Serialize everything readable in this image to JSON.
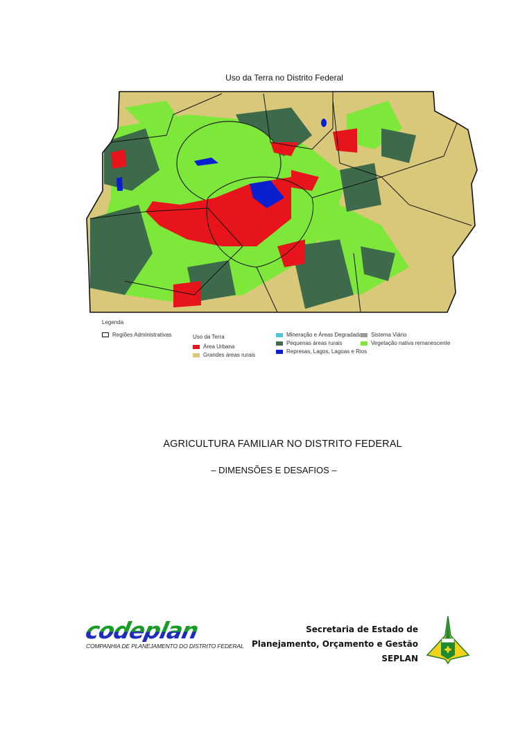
{
  "map": {
    "title": "Uso da Terra no Distrito Federal",
    "legend": {
      "heading": "Legenda",
      "boundary_label": "Regiões Administrativas",
      "group_label": "Uso da Terra",
      "items": [
        {
          "label": "Área Urbana",
          "color": "#e8141b"
        },
        {
          "label": "Grandes áreas rurais",
          "color": "#d9c77a"
        },
        {
          "label": "Mineração e Áreas Degradadas",
          "color": "#4fc6d6"
        },
        {
          "label": "Pequenas áreas rurais",
          "color": "#3d6a4a"
        },
        {
          "label": "Represas, Lagos, Lagoas e Rios",
          "color": "#0a1fd0"
        },
        {
          "label": "Sistema Viário",
          "color": "#9a9a9a"
        },
        {
          "label": "Vegetação nativa remanescente",
          "color": "#7ee83a"
        }
      ]
    }
  },
  "document": {
    "title": "AGRICULTURA FAMILIAR NO DISTRITO FEDERAL",
    "subtitle": "– DIMENSÕES E DESAFIOS –"
  },
  "footer": {
    "codeplan": {
      "name": "codeplan",
      "full_name": "COMPANHIA DE PLANEJAMENTO DO DISTRITO FEDERAL"
    },
    "seplan": {
      "line1": "Secretaria de Estado de",
      "line2": "Planejamento, Orçamento e Gestão",
      "line3": "SEPLAN"
    }
  }
}
